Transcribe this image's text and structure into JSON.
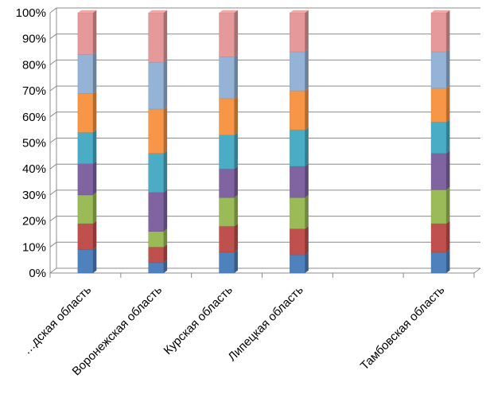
{
  "chart_data": {
    "type": "bar",
    "stacked": "percent",
    "categories": [
      "…дская область",
      "Воронежская область",
      "Курская область",
      "Липецкая область",
      "Тамбовская область"
    ],
    "series": [
      {
        "color": "#4f81bd",
        "values": [
          9,
          4,
          8,
          7,
          8
        ]
      },
      {
        "color": "#c0504d",
        "values": [
          10,
          6,
          10,
          10,
          11
        ]
      },
      {
        "color": "#9bbb59",
        "values": [
          11,
          6,
          11,
          12,
          13
        ]
      },
      {
        "color": "#8064a2",
        "values": [
          12,
          15,
          11,
          12,
          14
        ]
      },
      {
        "color": "#4bacc6",
        "values": [
          12,
          15,
          13,
          14,
          12
        ]
      },
      {
        "color": "#f79646",
        "values": [
          15,
          17,
          14,
          15,
          13
        ]
      },
      {
        "color": "#95b3d7",
        "values": [
          15,
          18,
          16,
          15,
          14
        ]
      },
      {
        "color": "#e6999a",
        "values": [
          16,
          19,
          17,
          15,
          15
        ]
      }
    ],
    "ylim": [
      0,
      100
    ],
    "yticks": [
      "0%",
      "10%",
      "20%",
      "30%",
      "40%",
      "50%",
      "60%",
      "70%",
      "80%",
      "90%",
      "100%"
    ],
    "grid": true,
    "legend": "none",
    "title": "",
    "xlabel": "",
    "ylabel": ""
  }
}
